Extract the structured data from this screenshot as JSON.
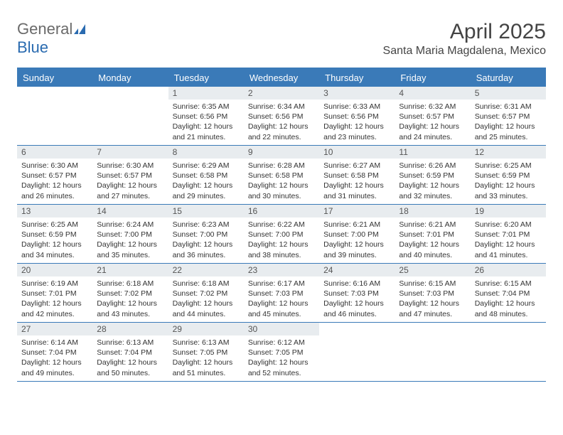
{
  "brand": {
    "name_part1": "General",
    "name_part2": "Blue",
    "icon_color": "#2a6bb0"
  },
  "title": "April 2025",
  "location": "Santa Maria Magdalena, Mexico",
  "header_bg": "#3a7ab8",
  "daybar_bg": "#e8ecef",
  "weekdays": [
    "Sunday",
    "Monday",
    "Tuesday",
    "Wednesday",
    "Thursday",
    "Friday",
    "Saturday"
  ],
  "weeks": [
    [
      {
        "n": "",
        "sr": "",
        "ss": "",
        "dl": ""
      },
      {
        "n": "",
        "sr": "",
        "ss": "",
        "dl": ""
      },
      {
        "n": "1",
        "sr": "Sunrise: 6:35 AM",
        "ss": "Sunset: 6:56 PM",
        "dl": "Daylight: 12 hours and 21 minutes."
      },
      {
        "n": "2",
        "sr": "Sunrise: 6:34 AM",
        "ss": "Sunset: 6:56 PM",
        "dl": "Daylight: 12 hours and 22 minutes."
      },
      {
        "n": "3",
        "sr": "Sunrise: 6:33 AM",
        "ss": "Sunset: 6:56 PM",
        "dl": "Daylight: 12 hours and 23 minutes."
      },
      {
        "n": "4",
        "sr": "Sunrise: 6:32 AM",
        "ss": "Sunset: 6:57 PM",
        "dl": "Daylight: 12 hours and 24 minutes."
      },
      {
        "n": "5",
        "sr": "Sunrise: 6:31 AM",
        "ss": "Sunset: 6:57 PM",
        "dl": "Daylight: 12 hours and 25 minutes."
      }
    ],
    [
      {
        "n": "6",
        "sr": "Sunrise: 6:30 AM",
        "ss": "Sunset: 6:57 PM",
        "dl": "Daylight: 12 hours and 26 minutes."
      },
      {
        "n": "7",
        "sr": "Sunrise: 6:30 AM",
        "ss": "Sunset: 6:57 PM",
        "dl": "Daylight: 12 hours and 27 minutes."
      },
      {
        "n": "8",
        "sr": "Sunrise: 6:29 AM",
        "ss": "Sunset: 6:58 PM",
        "dl": "Daylight: 12 hours and 29 minutes."
      },
      {
        "n": "9",
        "sr": "Sunrise: 6:28 AM",
        "ss": "Sunset: 6:58 PM",
        "dl": "Daylight: 12 hours and 30 minutes."
      },
      {
        "n": "10",
        "sr": "Sunrise: 6:27 AM",
        "ss": "Sunset: 6:58 PM",
        "dl": "Daylight: 12 hours and 31 minutes."
      },
      {
        "n": "11",
        "sr": "Sunrise: 6:26 AM",
        "ss": "Sunset: 6:59 PM",
        "dl": "Daylight: 12 hours and 32 minutes."
      },
      {
        "n": "12",
        "sr": "Sunrise: 6:25 AM",
        "ss": "Sunset: 6:59 PM",
        "dl": "Daylight: 12 hours and 33 minutes."
      }
    ],
    [
      {
        "n": "13",
        "sr": "Sunrise: 6:25 AM",
        "ss": "Sunset: 6:59 PM",
        "dl": "Daylight: 12 hours and 34 minutes."
      },
      {
        "n": "14",
        "sr": "Sunrise: 6:24 AM",
        "ss": "Sunset: 7:00 PM",
        "dl": "Daylight: 12 hours and 35 minutes."
      },
      {
        "n": "15",
        "sr": "Sunrise: 6:23 AM",
        "ss": "Sunset: 7:00 PM",
        "dl": "Daylight: 12 hours and 36 minutes."
      },
      {
        "n": "16",
        "sr": "Sunrise: 6:22 AM",
        "ss": "Sunset: 7:00 PM",
        "dl": "Daylight: 12 hours and 38 minutes."
      },
      {
        "n": "17",
        "sr": "Sunrise: 6:21 AM",
        "ss": "Sunset: 7:00 PM",
        "dl": "Daylight: 12 hours and 39 minutes."
      },
      {
        "n": "18",
        "sr": "Sunrise: 6:21 AM",
        "ss": "Sunset: 7:01 PM",
        "dl": "Daylight: 12 hours and 40 minutes."
      },
      {
        "n": "19",
        "sr": "Sunrise: 6:20 AM",
        "ss": "Sunset: 7:01 PM",
        "dl": "Daylight: 12 hours and 41 minutes."
      }
    ],
    [
      {
        "n": "20",
        "sr": "Sunrise: 6:19 AM",
        "ss": "Sunset: 7:01 PM",
        "dl": "Daylight: 12 hours and 42 minutes."
      },
      {
        "n": "21",
        "sr": "Sunrise: 6:18 AM",
        "ss": "Sunset: 7:02 PM",
        "dl": "Daylight: 12 hours and 43 minutes."
      },
      {
        "n": "22",
        "sr": "Sunrise: 6:18 AM",
        "ss": "Sunset: 7:02 PM",
        "dl": "Daylight: 12 hours and 44 minutes."
      },
      {
        "n": "23",
        "sr": "Sunrise: 6:17 AM",
        "ss": "Sunset: 7:03 PM",
        "dl": "Daylight: 12 hours and 45 minutes."
      },
      {
        "n": "24",
        "sr": "Sunrise: 6:16 AM",
        "ss": "Sunset: 7:03 PM",
        "dl": "Daylight: 12 hours and 46 minutes."
      },
      {
        "n": "25",
        "sr": "Sunrise: 6:15 AM",
        "ss": "Sunset: 7:03 PM",
        "dl": "Daylight: 12 hours and 47 minutes."
      },
      {
        "n": "26",
        "sr": "Sunrise: 6:15 AM",
        "ss": "Sunset: 7:04 PM",
        "dl": "Daylight: 12 hours and 48 minutes."
      }
    ],
    [
      {
        "n": "27",
        "sr": "Sunrise: 6:14 AM",
        "ss": "Sunset: 7:04 PM",
        "dl": "Daylight: 12 hours and 49 minutes."
      },
      {
        "n": "28",
        "sr": "Sunrise: 6:13 AM",
        "ss": "Sunset: 7:04 PM",
        "dl": "Daylight: 12 hours and 50 minutes."
      },
      {
        "n": "29",
        "sr": "Sunrise: 6:13 AM",
        "ss": "Sunset: 7:05 PM",
        "dl": "Daylight: 12 hours and 51 minutes."
      },
      {
        "n": "30",
        "sr": "Sunrise: 6:12 AM",
        "ss": "Sunset: 7:05 PM",
        "dl": "Daylight: 12 hours and 52 minutes."
      },
      {
        "n": "",
        "sr": "",
        "ss": "",
        "dl": ""
      },
      {
        "n": "",
        "sr": "",
        "ss": "",
        "dl": ""
      },
      {
        "n": "",
        "sr": "",
        "ss": "",
        "dl": ""
      }
    ]
  ]
}
